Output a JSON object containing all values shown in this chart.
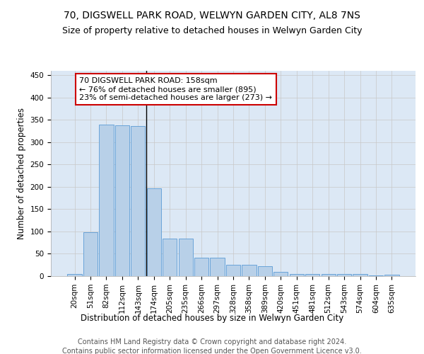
{
  "title": "70, DIGSWELL PARK ROAD, WELWYN GARDEN CITY, AL8 7NS",
  "subtitle": "Size of property relative to detached houses in Welwyn Garden City",
  "xlabel": "Distribution of detached houses by size in Welwyn Garden City",
  "ylabel": "Number of detached properties",
  "footer1": "Contains HM Land Registry data © Crown copyright and database right 2024.",
  "footer2": "Contains public sector information licensed under the Open Government Licence v3.0.",
  "categories": [
    "20sqm",
    "51sqm",
    "82sqm",
    "112sqm",
    "143sqm",
    "174sqm",
    "205sqm",
    "235sqm",
    "266sqm",
    "297sqm",
    "328sqm",
    "358sqm",
    "389sqm",
    "420sqm",
    "451sqm",
    "481sqm",
    "512sqm",
    "543sqm",
    "574sqm",
    "604sqm",
    "635sqm"
  ],
  "values": [
    5,
    98,
    340,
    338,
    337,
    197,
    84,
    84,
    42,
    42,
    25,
    25,
    23,
    10,
    5,
    5,
    4,
    5,
    4,
    2,
    3
  ],
  "bar_color": "#b8d0e8",
  "bar_edge_color": "#5b9bd5",
  "highlight_index": 4,
  "annotation_line1": "70 DIGSWELL PARK ROAD: 158sqm",
  "annotation_line2": "← 76% of detached houses are smaller (895)",
  "annotation_line3": "23% of semi-detached houses are larger (273) →",
  "annotation_box_color": "#ffffff",
  "annotation_box_edge_color": "#cc0000",
  "ylim": [
    0,
    460
  ],
  "yticks": [
    0,
    50,
    100,
    150,
    200,
    250,
    300,
    350,
    400,
    450
  ],
  "bg_color": "#ffffff",
  "grid_color": "#c8c8c8",
  "plot_bg_color": "#dce8f5",
  "title_fontsize": 10,
  "subtitle_fontsize": 9,
  "axis_label_fontsize": 8.5,
  "tick_fontsize": 7.5,
  "footer_fontsize": 7,
  "annotation_fontsize": 8
}
